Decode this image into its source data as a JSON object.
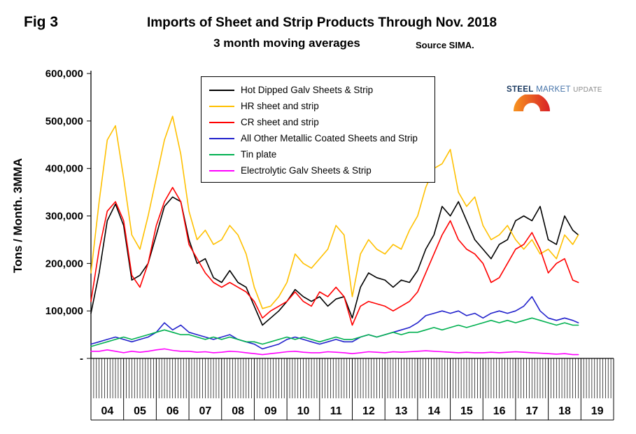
{
  "figure": {
    "fig_label": "Fig 3",
    "title": "Imports of Sheet and Strip Products Through Nov. 2018",
    "subtitle": "3 month moving averages",
    "source": "Source SIMA.",
    "y_axis_title": "Tons / Month. 3MMA"
  },
  "logo": {
    "steel": "STEEL",
    "market": "MARKET",
    "update": "UPDATE"
  },
  "chart_data": {
    "type": "line",
    "title": "Imports of Sheet and Strip Products Through Nov. 2018",
    "subtitle": "3 month moving averages",
    "source": "Source SIMA.",
    "xlabel": "",
    "ylabel": "Tons / Month. 3MMA",
    "units": "tons per month, 3-month moving average",
    "grid": false,
    "legend_position": "top-center-inside",
    "xlim": [
      2004,
      2020
    ],
    "ylim": [
      0,
      600000
    ],
    "ytick_values": [
      0,
      100000,
      200000,
      300000,
      400000,
      500000,
      600000
    ],
    "ytick_labels": [
      "-",
      "100,000",
      "200,000",
      "300,000",
      "400,000",
      "500,000",
      "600,000"
    ],
    "year_labels": [
      "04",
      "05",
      "06",
      "07",
      "08",
      "09",
      "10",
      "11",
      "12",
      "13",
      "14",
      "15",
      "16",
      "17",
      "18",
      "19"
    ],
    "x": [
      2004.0,
      2004.25,
      2004.5,
      2004.75,
      2005.0,
      2005.25,
      2005.5,
      2005.75,
      2006.0,
      2006.25,
      2006.5,
      2006.75,
      2007.0,
      2007.25,
      2007.5,
      2007.75,
      2008.0,
      2008.25,
      2008.5,
      2008.75,
      2009.0,
      2009.25,
      2009.5,
      2009.75,
      2010.0,
      2010.25,
      2010.5,
      2010.75,
      2011.0,
      2011.25,
      2011.5,
      2011.75,
      2012.0,
      2012.25,
      2012.5,
      2012.75,
      2013.0,
      2013.25,
      2013.5,
      2013.75,
      2014.0,
      2014.25,
      2014.5,
      2014.75,
      2015.0,
      2015.25,
      2015.5,
      2015.75,
      2016.0,
      2016.25,
      2016.5,
      2016.75,
      2017.0,
      2017.25,
      2017.5,
      2017.75,
      2018.0,
      2018.25,
      2018.5,
      2018.75,
      2018.92
    ],
    "series": [
      {
        "name": "Hot Dipped Galv Sheets & Strip",
        "color": "#000000",
        "values": [
          95000,
          180000,
          290000,
          325000,
          280000,
          165000,
          175000,
          200000,
          260000,
          320000,
          340000,
          330000,
          250000,
          200000,
          210000,
          170000,
          160000,
          185000,
          160000,
          150000,
          110000,
          70000,
          85000,
          100000,
          120000,
          145000,
          130000,
          120000,
          130000,
          110000,
          125000,
          130000,
          85000,
          150000,
          180000,
          170000,
          165000,
          150000,
          165000,
          160000,
          185000,
          230000,
          260000,
          320000,
          300000,
          330000,
          290000,
          250000,
          230000,
          210000,
          240000,
          250000,
          290000,
          300000,
          290000,
          320000,
          250000,
          240000,
          300000,
          270000,
          260000
        ]
      },
      {
        "name": "HR sheet and strip",
        "color": "#FFC000",
        "values": [
          180000,
          330000,
          460000,
          490000,
          380000,
          260000,
          230000,
          300000,
          380000,
          460000,
          510000,
          430000,
          310000,
          250000,
          270000,
          240000,
          250000,
          280000,
          260000,
          220000,
          150000,
          105000,
          110000,
          130000,
          160000,
          220000,
          200000,
          190000,
          210000,
          230000,
          280000,
          260000,
          130000,
          220000,
          250000,
          230000,
          220000,
          240000,
          230000,
          270000,
          300000,
          360000,
          400000,
          410000,
          440000,
          350000,
          320000,
          340000,
          280000,
          250000,
          260000,
          280000,
          250000,
          230000,
          250000,
          220000,
          230000,
          210000,
          260000,
          240000,
          260000
        ]
      },
      {
        "name": "CR sheet and strip",
        "color": "#FF0000",
        "values": [
          120000,
          230000,
          310000,
          330000,
          290000,
          175000,
          150000,
          200000,
          280000,
          330000,
          360000,
          330000,
          240000,
          210000,
          180000,
          160000,
          150000,
          160000,
          150000,
          140000,
          120000,
          85000,
          100000,
          110000,
          120000,
          140000,
          120000,
          110000,
          140000,
          130000,
          150000,
          130000,
          70000,
          110000,
          120000,
          115000,
          110000,
          100000,
          110000,
          120000,
          140000,
          180000,
          220000,
          260000,
          290000,
          250000,
          230000,
          220000,
          200000,
          160000,
          170000,
          200000,
          230000,
          240000,
          265000,
          230000,
          180000,
          200000,
          210000,
          165000,
          160000
        ]
      },
      {
        "name": "All Other Metallic Coated Sheets and Strip",
        "color": "#2222CC",
        "values": [
          30000,
          35000,
          40000,
          45000,
          40000,
          35000,
          40000,
          45000,
          55000,
          75000,
          60000,
          70000,
          55000,
          50000,
          45000,
          40000,
          45000,
          50000,
          40000,
          35000,
          30000,
          20000,
          25000,
          30000,
          40000,
          45000,
          40000,
          35000,
          30000,
          35000,
          40000,
          35000,
          35000,
          45000,
          50000,
          45000,
          50000,
          55000,
          60000,
          65000,
          75000,
          90000,
          95000,
          100000,
          95000,
          100000,
          90000,
          95000,
          85000,
          95000,
          100000,
          95000,
          100000,
          110000,
          130000,
          100000,
          85000,
          80000,
          85000,
          80000,
          75000
        ]
      },
      {
        "name": "Tin plate",
        "color": "#00B050",
        "values": [
          25000,
          30000,
          35000,
          40000,
          45000,
          40000,
          45000,
          50000,
          55000,
          60000,
          55000,
          50000,
          50000,
          45000,
          40000,
          45000,
          40000,
          45000,
          40000,
          35000,
          35000,
          30000,
          35000,
          40000,
          45000,
          40000,
          45000,
          40000,
          35000,
          40000,
          45000,
          40000,
          40000,
          45000,
          50000,
          45000,
          50000,
          55000,
          50000,
          55000,
          55000,
          60000,
          65000,
          60000,
          65000,
          70000,
          65000,
          70000,
          75000,
          80000,
          75000,
          80000,
          75000,
          80000,
          85000,
          80000,
          75000,
          70000,
          75000,
          70000,
          70000
        ]
      },
      {
        "name": "Electrolytic Galv Sheets & Strip",
        "color": "#FF00FF",
        "values": [
          15000,
          15000,
          18000,
          15000,
          12000,
          15000,
          13000,
          15000,
          18000,
          20000,
          17000,
          15000,
          15000,
          13000,
          14000,
          12000,
          13000,
          15000,
          14000,
          12000,
          10000,
          8000,
          10000,
          12000,
          14000,
          15000,
          13000,
          12000,
          12000,
          14000,
          13000,
          12000,
          10000,
          12000,
          14000,
          13000,
          12000,
          14000,
          13000,
          14000,
          15000,
          16000,
          15000,
          14000,
          13000,
          12000,
          13000,
          12000,
          12000,
          13000,
          12000,
          13000,
          14000,
          13000,
          12000,
          11000,
          10000,
          9000,
          10000,
          8000,
          8000
        ]
      }
    ]
  }
}
